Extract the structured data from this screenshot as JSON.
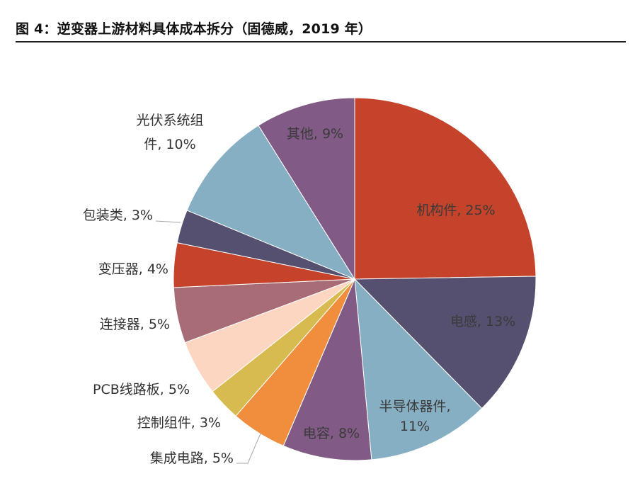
{
  "title": "图 4：逆变器上游材料具体成本拆分（固德威，2019 年）",
  "chart_data": {
    "type": "pie",
    "title": "图 4：逆变器上游材料具体成本拆分（固德威，2019 年）",
    "unit": "%",
    "start": "12 o'clock, clockwise",
    "slices": [
      {
        "name": "机构件",
        "value": 25,
        "label": "机构件, 25%",
        "color": "#C5432A"
      },
      {
        "name": "电感",
        "value": 13,
        "label": "电感, 13%",
        "color": "#565070"
      },
      {
        "name": "半导体器件",
        "value": 11,
        "label": "半导体器件, 11%",
        "label_lines": [
          "半导体器件,",
          "11%"
        ],
        "color": "#87AFC4"
      },
      {
        "name": "电容",
        "value": 8,
        "label": "电容, 8%",
        "color": "#825A86"
      },
      {
        "name": "集成电路",
        "value": 5,
        "label": "集成电路, 5%",
        "color": "#F08E3E"
      },
      {
        "name": "控制组件",
        "value": 3,
        "label": "控制组件, 3%",
        "color": "#D7BB50"
      },
      {
        "name": "PCB线路板",
        "value": 5,
        "label": "PCB线路板, 5%",
        "color": "#FDD6C2"
      },
      {
        "name": "连接器",
        "value": 5,
        "label": "连接器, 5%",
        "color": "#A76C75"
      },
      {
        "name": "变压器",
        "value": 4,
        "label": "变压器, 4%",
        "color": "#C5432A"
      },
      {
        "name": "包装类",
        "value": 3,
        "label": "包装类, 3%",
        "color": "#565070"
      },
      {
        "name": "光伏系统组件",
        "value": 10,
        "label": "光伏系统组件, 10%",
        "label_lines": [
          "光伏系统组",
          "件, 10%"
        ],
        "color": "#87AFC4"
      },
      {
        "name": "其他",
        "value": 9,
        "label": "其他, 9%",
        "color": "#825A86"
      }
    ],
    "legend": "none"
  }
}
